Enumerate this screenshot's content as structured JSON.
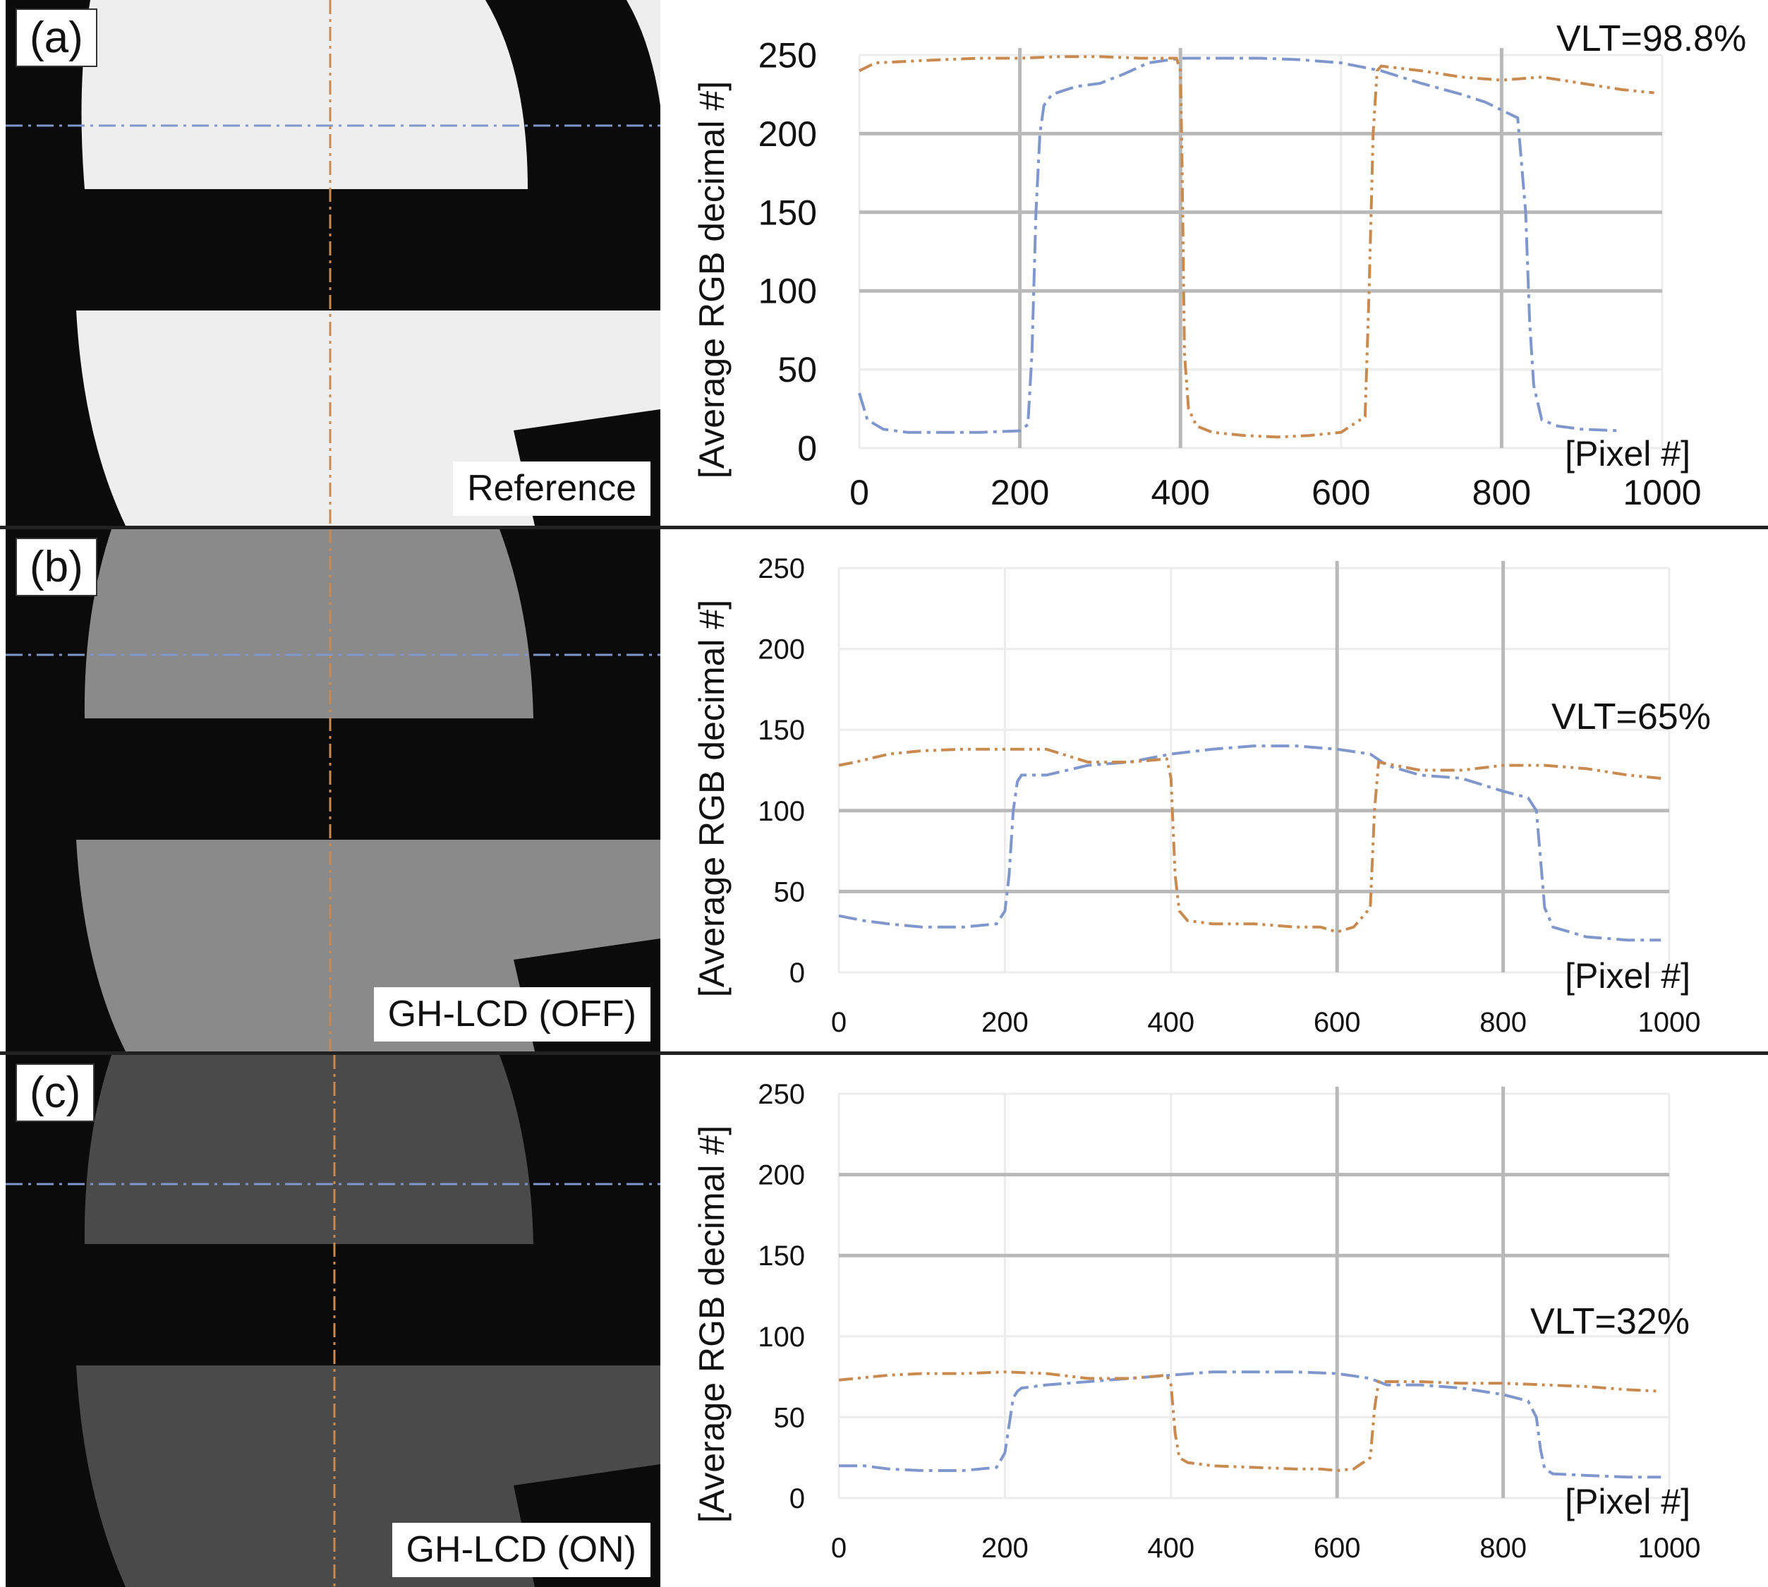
{
  "colors": {
    "blue_series": "#7f97cc",
    "orange_series": "#c98a50",
    "grid": "#b9b9b9",
    "photo_bg": "#0b0b0b"
  },
  "panels": [
    {
      "letter": "(a)",
      "condition": "Reference",
      "vlt": "VLT=98.8%",
      "photo_brightness": "#eeeeee",
      "chart": {
        "type": "line",
        "ylabel": "[Average RGB decimal #]",
        "xlabel": "[Pixel #]",
        "xlim": [
          0,
          1000
        ],
        "ylim": [
          0,
          250
        ],
        "xticks": [
          "0",
          "200",
          "400",
          "600",
          "800",
          "1000"
        ],
        "yticks": [
          "0",
          "50",
          "100",
          "150",
          "200",
          "250"
        ],
        "vgrid": [
          200,
          400,
          800
        ],
        "hgrid": [
          100,
          150,
          200
        ]
      }
    },
    {
      "letter": "(b)",
      "condition": "GH-LCD (OFF)",
      "vlt": "VLT=65%",
      "photo_brightness": "#8a8a8a",
      "chart": {
        "type": "line",
        "ylabel": "[Average RGB decimal #]",
        "xlabel": "[Pixel #]",
        "xlim": [
          0,
          1000
        ],
        "ylim": [
          0,
          250
        ],
        "xticks": [
          "0",
          "200",
          "400",
          "600",
          "800",
          "1000"
        ],
        "yticks": [
          "0",
          "50",
          "100",
          "150",
          "200",
          "250"
        ],
        "vgrid": [
          600,
          800
        ],
        "hgrid": [
          50,
          100
        ]
      }
    },
    {
      "letter": "(c)",
      "condition": "GH-LCD (ON)",
      "vlt": "VLT=32%",
      "photo_brightness": "#4a4a4a",
      "chart": {
        "type": "line",
        "ylabel": "[Average RGB decimal #]",
        "xlabel": "[Pixel #]",
        "xlim": [
          0,
          1000
        ],
        "ylim": [
          0,
          250
        ],
        "xticks": [
          "0",
          "200",
          "400",
          "600",
          "800",
          "1000"
        ],
        "yticks": [
          "0",
          "50",
          "100",
          "150",
          "200",
          "250"
        ],
        "vgrid": [
          600,
          800
        ],
        "hgrid": [
          150,
          200
        ]
      }
    }
  ],
  "chart_data": [
    {
      "type": "line",
      "ylabel": "[Average RGB decimal #]",
      "xlabel": "[Pixel #]",
      "annotation": "VLT=98.8%",
      "xlim": [
        0,
        1000
      ],
      "ylim": [
        0,
        250
      ],
      "series": [
        {
          "x": [
            0,
            10,
            30,
            60,
            100,
            150,
            200,
            210,
            215,
            220,
            225,
            230,
            240,
            270,
            300,
            330,
            360,
            400,
            450,
            500,
            550,
            600,
            650,
            700,
            750,
            780,
            800,
            820,
            830,
            835,
            840,
            850,
            870,
            900,
            950
          ],
          "y": [
            35,
            18,
            12,
            10,
            10,
            10,
            11,
            15,
            60,
            150,
            200,
            218,
            225,
            230,
            232,
            238,
            245,
            248,
            248,
            248,
            247,
            245,
            240,
            232,
            225,
            220,
            215,
            210,
            150,
            80,
            40,
            18,
            14,
            12,
            11
          ]
        },
        {
          "x": [
            0,
            20,
            60,
            100,
            150,
            200,
            250,
            300,
            350,
            395,
            400,
            402,
            405,
            410,
            420,
            440,
            480,
            520,
            560,
            600,
            630,
            635,
            640,
            645,
            650,
            700,
            750,
            800,
            850,
            900,
            950,
            990
          ],
          "y": [
            240,
            245,
            246,
            247,
            248,
            248,
            249,
            249,
            248,
            248,
            240,
            180,
            60,
            25,
            14,
            10,
            8,
            7,
            8,
            10,
            20,
            100,
            200,
            240,
            243,
            240,
            236,
            234,
            236,
            232,
            228,
            226
          ]
        }
      ]
    },
    {
      "type": "line",
      "ylabel": "[Average RGB decimal #]",
      "xlabel": "[Pixel #]",
      "annotation": "VLT=65%",
      "xlim": [
        0,
        1000
      ],
      "ylim": [
        0,
        250
      ],
      "series": [
        {
          "x": [
            0,
            30,
            60,
            100,
            150,
            190,
            200,
            205,
            210,
            215,
            220,
            250,
            300,
            350,
            400,
            450,
            500,
            550,
            600,
            640,
            660,
            700,
            750,
            800,
            830,
            840,
            845,
            850,
            860,
            900,
            950,
            990
          ],
          "y": [
            35,
            32,
            30,
            28,
            28,
            30,
            38,
            60,
            100,
            118,
            122,
            122,
            128,
            130,
            135,
            138,
            140,
            140,
            138,
            135,
            128,
            122,
            120,
            112,
            108,
            100,
            70,
            40,
            28,
            22,
            20,
            20
          ]
        },
        {
          "x": [
            0,
            20,
            60,
            100,
            150,
            200,
            250,
            300,
            350,
            395,
            400,
            405,
            410,
            420,
            450,
            500,
            550,
            580,
            600,
            620,
            640,
            645,
            650,
            700,
            750,
            800,
            850,
            900,
            950,
            990
          ],
          "y": [
            128,
            130,
            135,
            137,
            138,
            138,
            138,
            130,
            130,
            132,
            120,
            60,
            38,
            32,
            30,
            30,
            28,
            28,
            25,
            28,
            40,
            100,
            130,
            125,
            125,
            128,
            128,
            126,
            122,
            120
          ]
        }
      ]
    },
    {
      "type": "line",
      "ylabel": "[Average RGB decimal #]",
      "xlabel": "[Pixel #]",
      "annotation": "VLT=32%",
      "xlim": [
        0,
        1000
      ],
      "ylim": [
        0,
        250
      ],
      "series": [
        {
          "x": [
            0,
            30,
            60,
            100,
            150,
            190,
            200,
            205,
            210,
            215,
            220,
            250,
            300,
            350,
            400,
            450,
            500,
            550,
            600,
            640,
            660,
            700,
            750,
            800,
            830,
            840,
            845,
            850,
            860,
            900,
            950,
            990
          ],
          "y": [
            20,
            20,
            18,
            17,
            17,
            19,
            28,
            45,
            62,
            66,
            68,
            70,
            72,
            74,
            76,
            78,
            78,
            78,
            77,
            74,
            70,
            70,
            68,
            64,
            60,
            50,
            30,
            18,
            15,
            14,
            13,
            13
          ]
        },
        {
          "x": [
            0,
            20,
            60,
            100,
            150,
            200,
            250,
            300,
            350,
            395,
            400,
            405,
            410,
            420,
            450,
            500,
            550,
            580,
            600,
            620,
            640,
            645,
            650,
            700,
            750,
            800,
            850,
            900,
            950,
            990
          ],
          "y": [
            73,
            74,
            76,
            77,
            77,
            78,
            77,
            74,
            74,
            76,
            70,
            40,
            25,
            22,
            20,
            19,
            18,
            18,
            17,
            18,
            25,
            55,
            72,
            72,
            71,
            71,
            70,
            69,
            67,
            66
          ]
        }
      ]
    }
  ]
}
